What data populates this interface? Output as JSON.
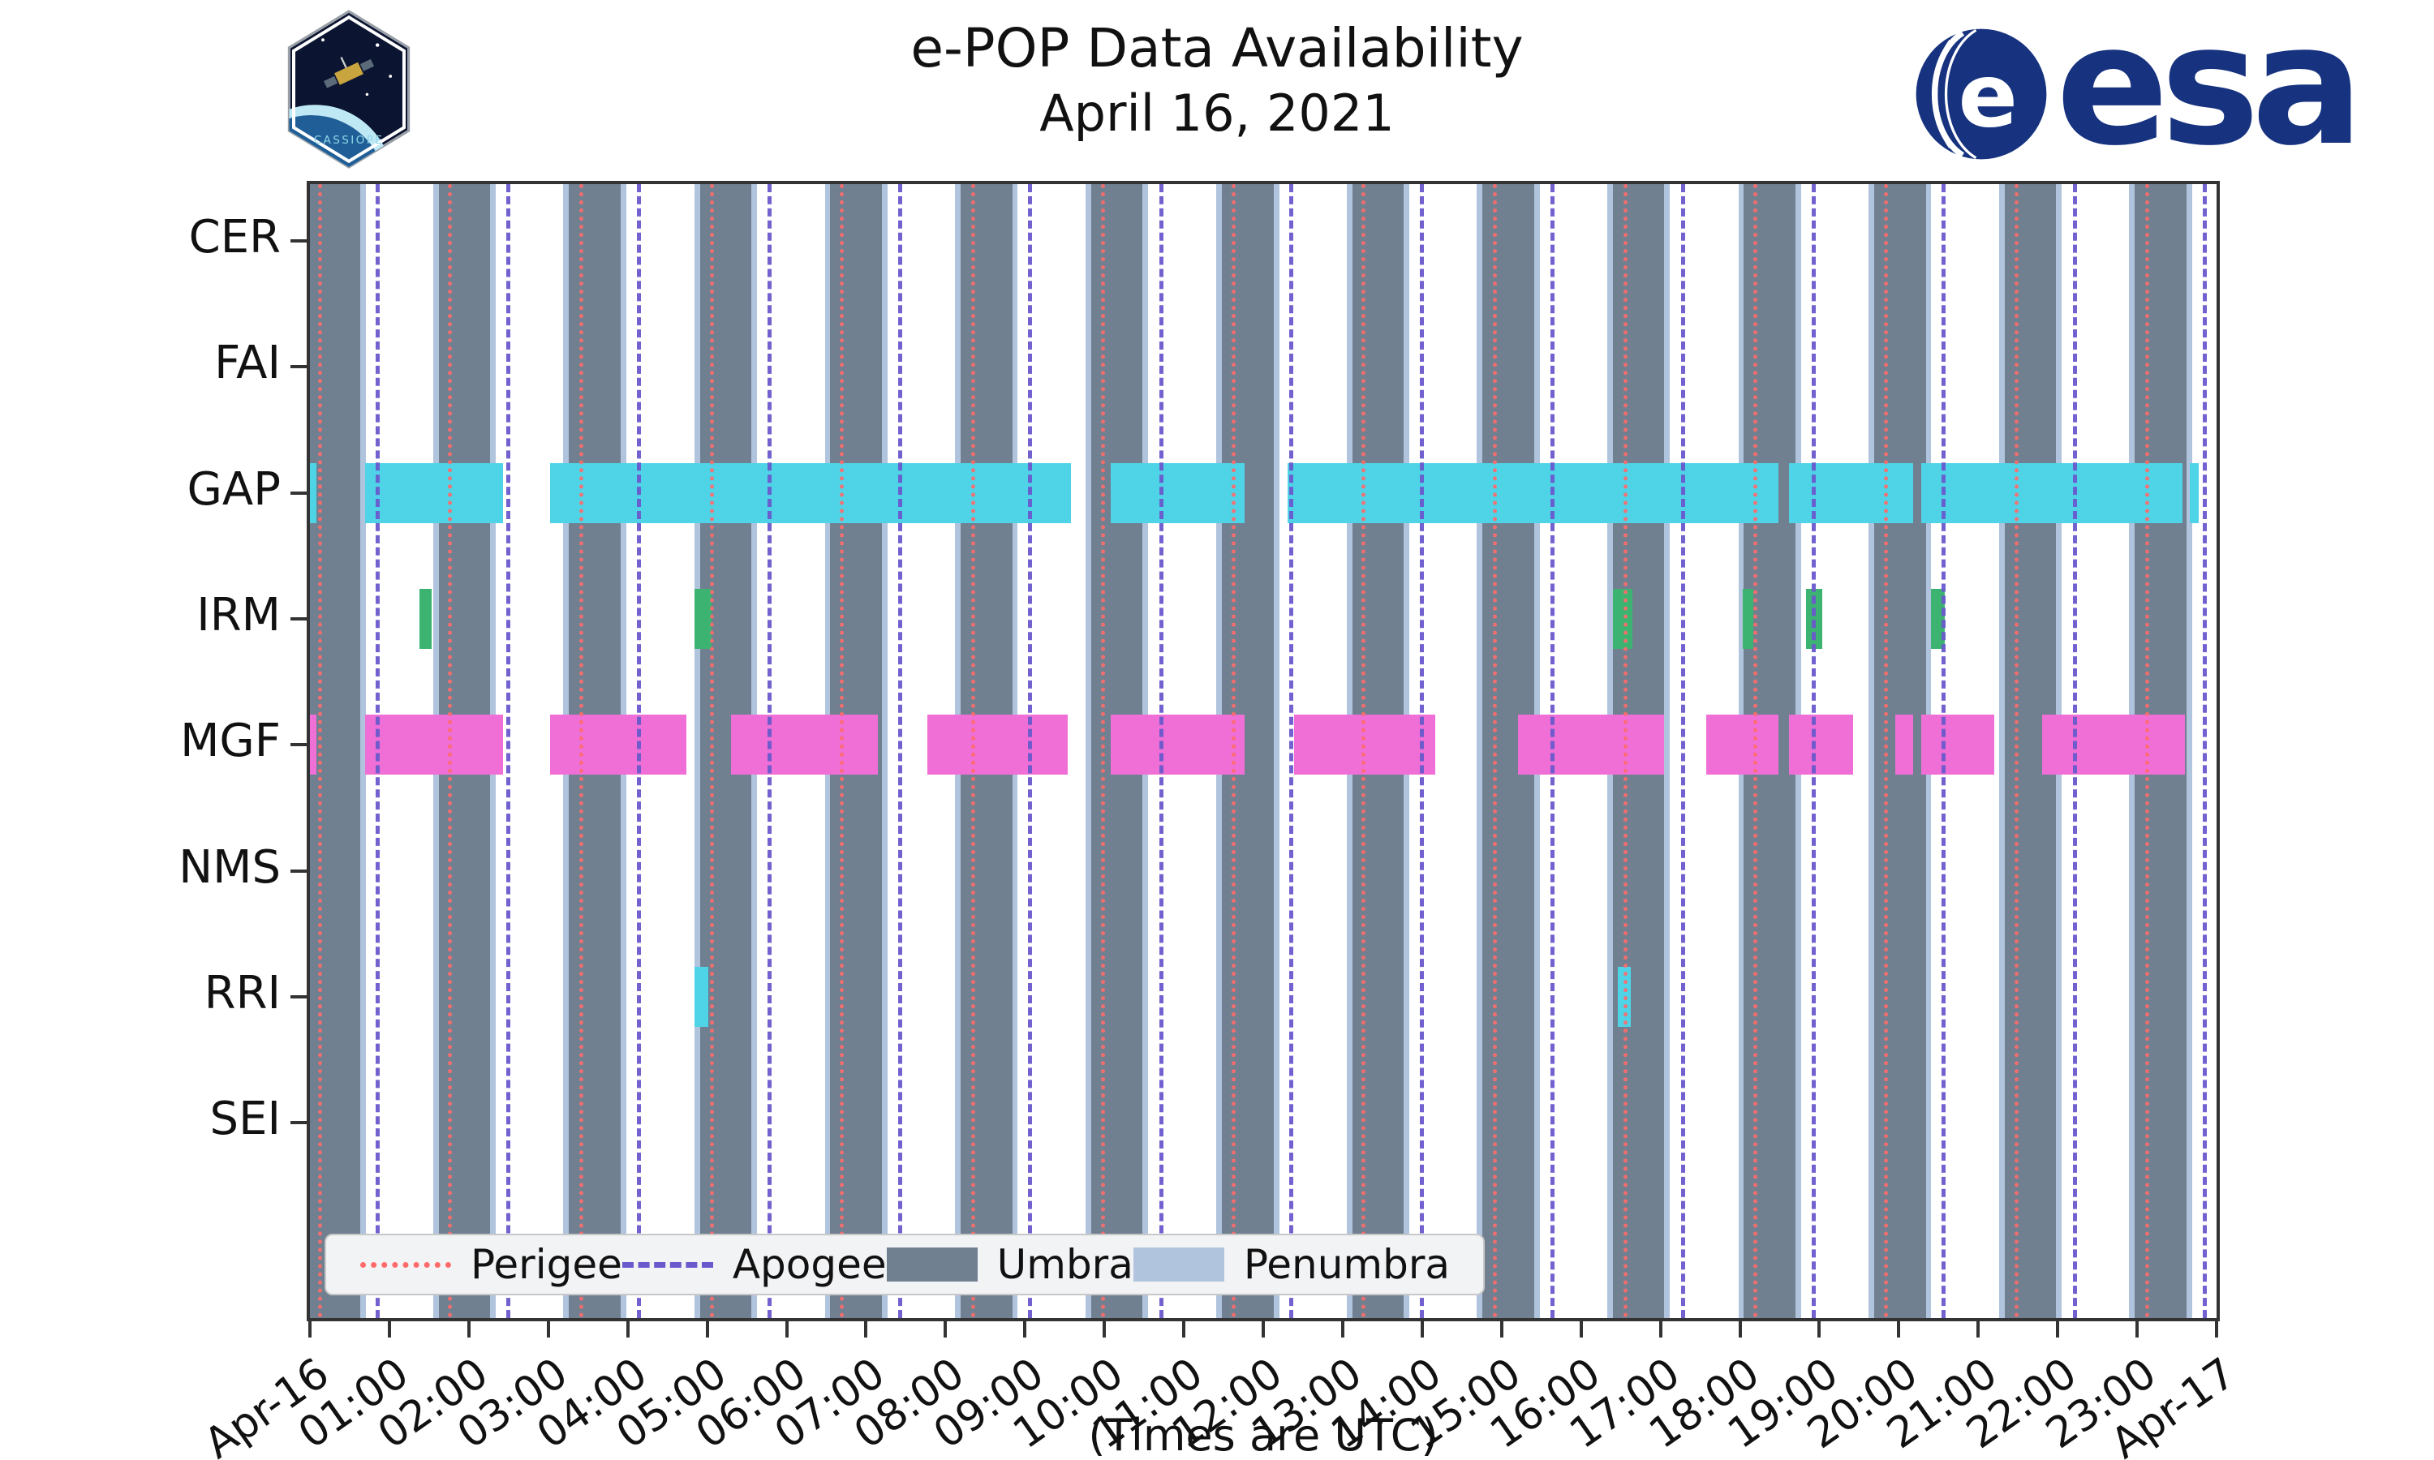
{
  "header": {
    "title_line1": "e-POP Data Availability",
    "title_line2": "April 16, 2021",
    "cassiope_label": "CASSIOPE",
    "esa_wordmark": "esa"
  },
  "chart_data": {
    "type": "timeline",
    "title": "e-POP Data Availability",
    "subtitle": "April 16, 2021",
    "xlabel": "(Times are UTC)",
    "x_range_hours": [
      0,
      24
    ],
    "x_tick_labels": [
      "Apr-16",
      "01:00",
      "02:00",
      "03:00",
      "04:00",
      "05:00",
      "06:00",
      "07:00",
      "08:00",
      "09:00",
      "10:00",
      "11:00",
      "12:00",
      "13:00",
      "14:00",
      "15:00",
      "16:00",
      "17:00",
      "18:00",
      "19:00",
      "20:00",
      "21:00",
      "22:00",
      "23:00",
      "Apr-17"
    ],
    "instruments": [
      "CER",
      "FAI",
      "GAP",
      "IRM",
      "MGF",
      "NMS",
      "RRI",
      "SEI"
    ],
    "series_colors": {
      "GAP": "#4fd4e7",
      "IRM": "#3cb371",
      "MGF": "#ef6fd6",
      "RRI": "#4fd4e7"
    },
    "availability_hours": {
      "CER": [],
      "FAI": [],
      "GAP": [
        [
          0.0,
          0.08
        ],
        [
          0.69,
          2.43
        ],
        [
          3.02,
          9.58
        ],
        [
          10.08,
          11.76
        ],
        [
          12.31,
          18.49
        ],
        [
          18.62,
          20.18
        ],
        [
          20.28,
          23.57
        ],
        [
          23.66,
          23.78
        ]
      ],
      "IRM": [
        [
          1.38,
          1.53
        ],
        [
          4.84,
          5.06
        ],
        [
          16.4,
          16.65
        ],
        [
          18.04,
          18.17
        ],
        [
          18.83,
          19.04
        ],
        [
          20.41,
          20.58
        ]
      ],
      "MGF": [
        [
          0.0,
          0.08
        ],
        [
          0.69,
          2.43
        ],
        [
          3.02,
          4.74
        ],
        [
          5.3,
          7.15
        ],
        [
          7.77,
          9.54
        ],
        [
          10.08,
          11.76
        ],
        [
          12.39,
          14.17
        ],
        [
          15.21,
          17.05
        ],
        [
          17.58,
          18.49
        ],
        [
          18.62,
          19.42
        ],
        [
          19.96,
          20.18
        ],
        [
          20.28,
          21.2
        ],
        [
          21.8,
          23.6
        ]
      ],
      "NMS": [],
      "RRI": [
        [
          4.84,
          5.01
        ],
        [
          16.46,
          16.63
        ]
      ],
      "SEI": []
    },
    "umbra_intervals_hours": [
      [
        0.0,
        0.63
      ],
      [
        1.62,
        2.27
      ],
      [
        3.26,
        3.91
      ],
      [
        4.91,
        5.56
      ],
      [
        6.55,
        7.2
      ],
      [
        8.19,
        8.84
      ],
      [
        9.83,
        10.48
      ],
      [
        11.48,
        12.13
      ],
      [
        13.12,
        13.77
      ],
      [
        14.76,
        15.41
      ],
      [
        16.4,
        17.05
      ],
      [
        18.05,
        18.7
      ],
      [
        19.69,
        20.34
      ],
      [
        21.33,
        21.98
      ],
      [
        22.97,
        23.62
      ]
    ],
    "penumbra_halfwidth_hours": 0.07,
    "apogee_times_hours": [
      0.83,
      2.47,
      4.12,
      5.76,
      7.4,
      9.04,
      10.69,
      12.33,
      13.97,
      15.62,
      17.26,
      18.9,
      20.54,
      22.19,
      23.83
    ],
    "perigee_times_hours": [
      0.1,
      1.74,
      3.39,
      5.03,
      6.67,
      8.32,
      9.96,
      11.6,
      13.24,
      14.89,
      16.53,
      18.17,
      19.81,
      21.46,
      23.1
    ],
    "event_colors": {
      "umbra": "#708090",
      "penumbra": "#b0c4de",
      "apogee": "#6a5acd",
      "perigee": "#ff6b6b"
    },
    "legend": [
      {
        "label": "Perigee",
        "style": "dotted-line",
        "color": "#ff6b6b"
      },
      {
        "label": "Apogee",
        "style": "dashed-line",
        "color": "#6a5acd"
      },
      {
        "label": "Umbra",
        "style": "patch",
        "color": "#708090"
      },
      {
        "label": "Penumbra",
        "style": "patch",
        "color": "#b0c4de"
      }
    ]
  }
}
